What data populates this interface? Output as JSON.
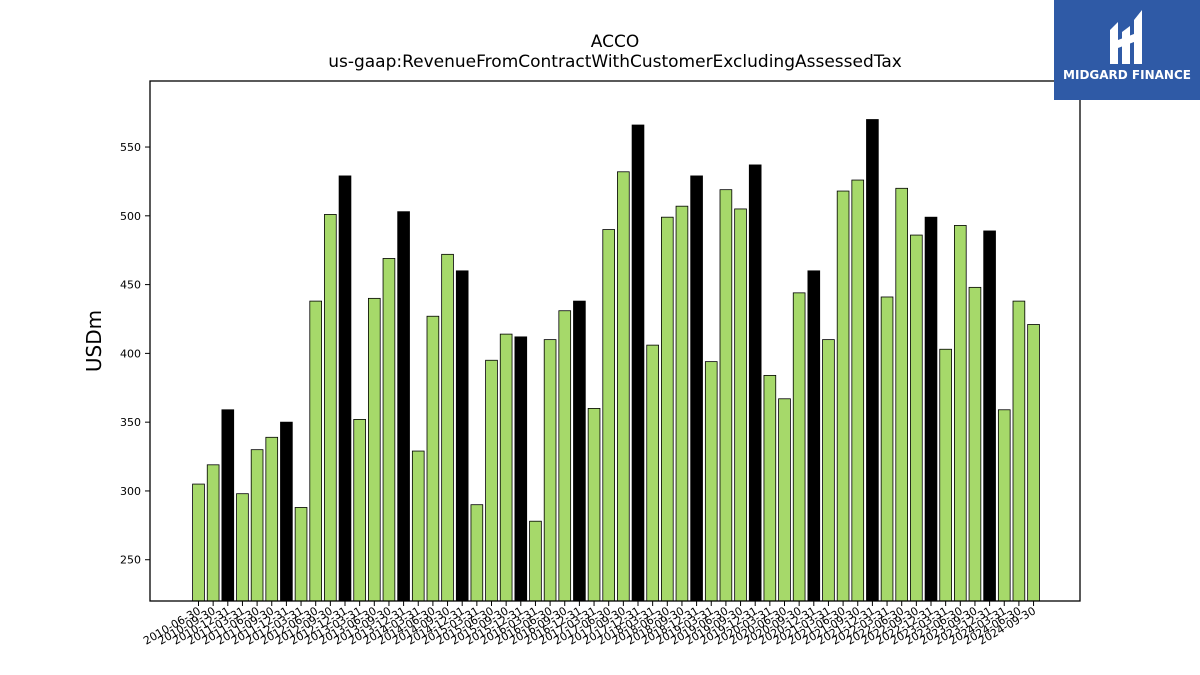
{
  "title": "ACCO",
  "subtitle": "us-gaap:RevenueFromContractWithCustomerExcludingAssessedTax",
  "logo": {
    "text": "MIDGARD FINANCE",
    "icon": "midgard-logo-icon",
    "color": "#2f5aa6"
  },
  "colors": {
    "quarter_bar": "#a6d96a",
    "annual_bar": "#000000"
  },
  "chart_data": {
    "type": "bar",
    "title": "ACCO",
    "subtitle": "us-gaap:RevenueFromContractWithCustomerExcludingAssessedTax",
    "xlabel": "",
    "ylabel": "USDm",
    "ylim": [
      220,
      598
    ],
    "yticks": [
      250,
      300,
      350,
      400,
      450,
      500,
      550
    ],
    "grid": false,
    "categories": [
      "2010-06-30",
      "2010-09-30",
      "2010-12-31",
      "2011-03-31",
      "2011-06-30",
      "2011-09-30",
      "2011-12-31",
      "2012-03-31",
      "2012-06-30",
      "2012-09-30",
      "2012-12-31",
      "2013-03-31",
      "2013-06-30",
      "2013-09-30",
      "2013-12-31",
      "2014-03-31",
      "2014-06-30",
      "2014-09-30",
      "2014-12-31",
      "2015-03-31",
      "2015-06-30",
      "2015-09-30",
      "2015-12-31",
      "2016-03-31",
      "2016-06-30",
      "2016-09-30",
      "2016-12-31",
      "2017-03-31",
      "2017-06-30",
      "2017-09-30",
      "2017-12-31",
      "2018-03-31",
      "2018-06-30",
      "2018-09-30",
      "2018-12-31",
      "2019-03-31",
      "2019-06-30",
      "2019-09-30",
      "2019-12-31",
      "2020-03-31",
      "2020-06-30",
      "2020-09-30",
      "2020-12-31",
      "2021-03-31",
      "2021-06-30",
      "2021-09-30",
      "2021-12-31",
      "2022-03-31",
      "2022-06-30",
      "2022-09-30",
      "2022-12-31",
      "2023-03-31",
      "2023-06-30",
      "2023-09-30",
      "2023-12-31",
      "2024-03-31",
      "2024-06-30",
      "2024-09-30"
    ],
    "values": [
      305,
      319,
      359,
      298,
      330,
      339,
      350,
      288,
      438,
      501,
      529,
      352,
      440,
      469,
      503,
      329,
      427,
      472,
      460,
      290,
      395,
      414,
      412,
      278,
      410,
      431,
      438,
      360,
      490,
      532,
      566,
      406,
      499,
      507,
      529,
      394,
      519,
      505,
      537,
      384,
      367,
      444,
      460,
      410,
      518,
      526,
      570,
      441,
      520,
      486,
      499,
      403,
      493,
      448,
      489,
      359,
      438,
      421
    ],
    "annual": [
      false,
      false,
      true,
      false,
      false,
      false,
      true,
      false,
      false,
      false,
      true,
      false,
      false,
      false,
      true,
      false,
      false,
      false,
      true,
      false,
      false,
      false,
      true,
      false,
      false,
      false,
      true,
      false,
      false,
      false,
      true,
      false,
      false,
      false,
      true,
      false,
      false,
      false,
      true,
      false,
      false,
      false,
      true,
      false,
      false,
      false,
      true,
      false,
      false,
      false,
      true,
      false,
      false,
      false,
      true,
      false,
      false,
      false
    ]
  }
}
